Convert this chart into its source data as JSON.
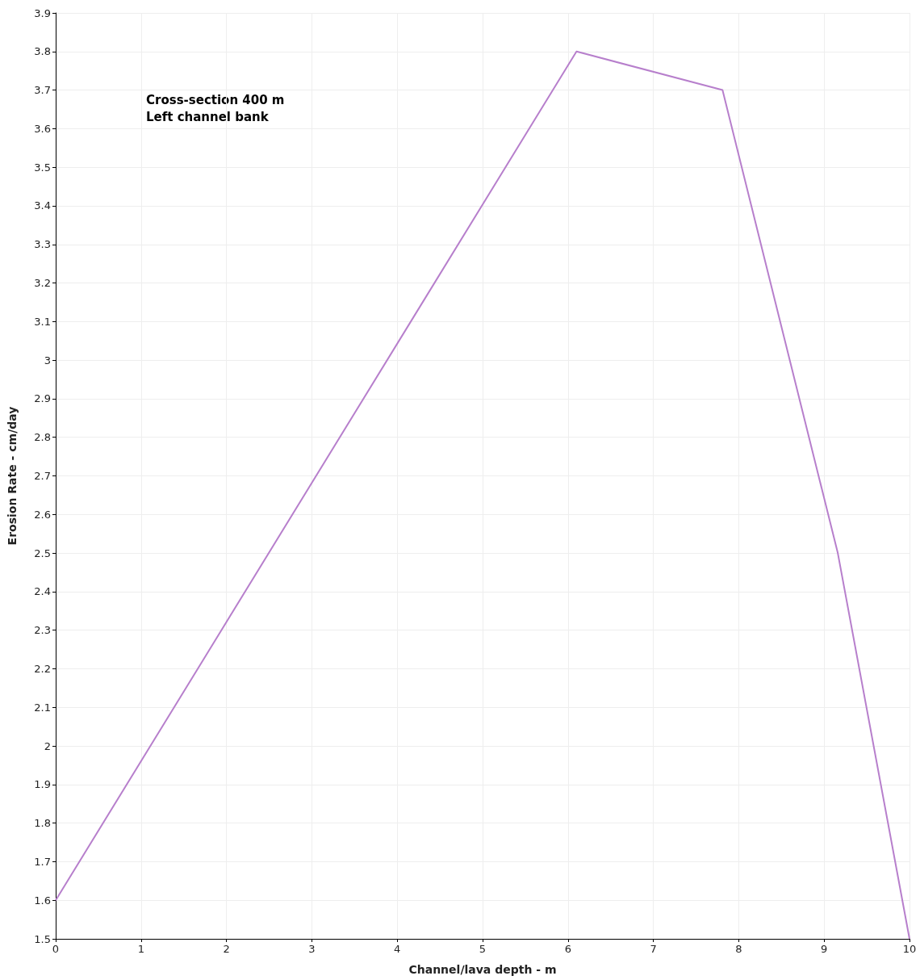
{
  "chart_data": {
    "type": "line",
    "xlabel": "Channel/lava depth - m",
    "ylabel": "Erosion Rate - cm/day",
    "annotations": [
      "Cross-section 400 m",
      "Left channel bank"
    ],
    "x": [
      0,
      6.1,
      7.81,
      9.16,
      10
    ],
    "series": [
      {
        "color": "#b77fcc",
        "values": [
          1.6,
          3.8,
          3.7,
          2.5,
          1.5
        ]
      }
    ],
    "xlim": [
      0,
      10
    ],
    "xticks": [
      0,
      1,
      2,
      3,
      4,
      5,
      6,
      7,
      8,
      9,
      10
    ],
    "ylim": [
      1.5,
      3.9
    ],
    "yticks": [
      1.5,
      1.6,
      1.7,
      1.8,
      1.9,
      2,
      2.1,
      2.2,
      2.3,
      2.4,
      2.5,
      2.6,
      2.7,
      2.8,
      2.9,
      3,
      3.1,
      3.2,
      3.3,
      3.4,
      3.5,
      3.6,
      3.7,
      3.8,
      3.9
    ],
    "grid": true,
    "marker": "none",
    "line_style": "solid"
  }
}
